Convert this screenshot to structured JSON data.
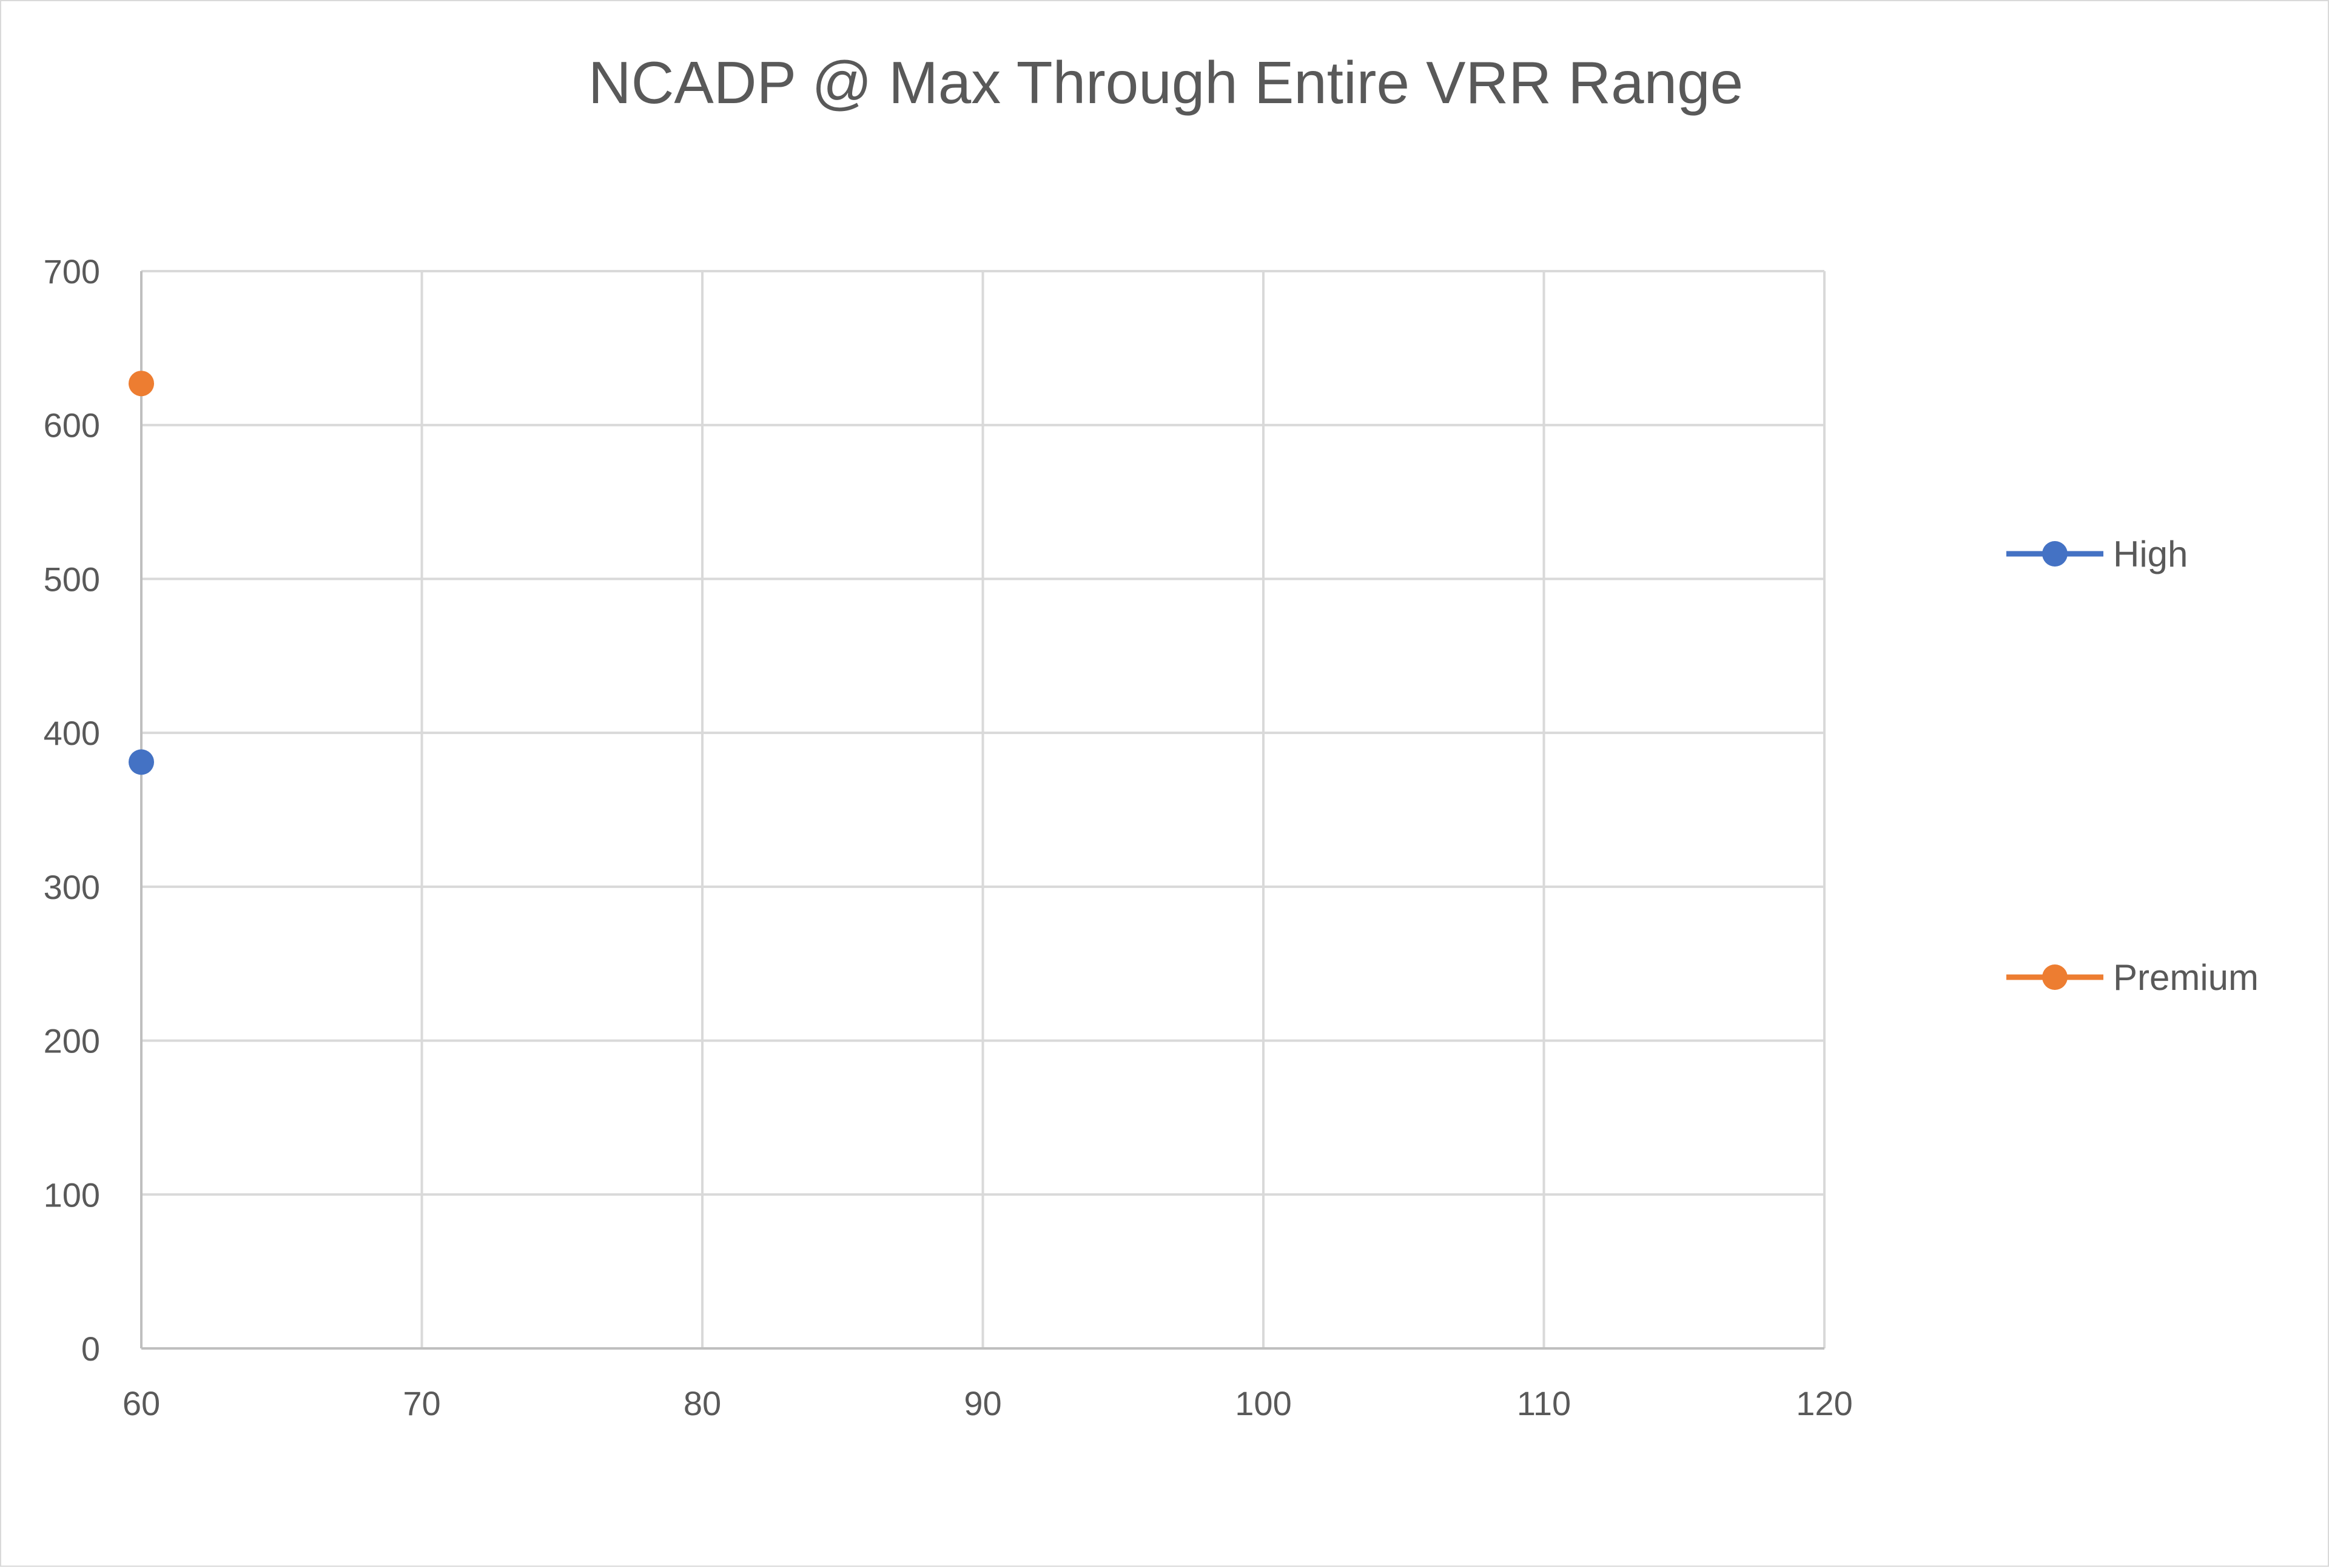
{
  "chart_data": {
    "type": "line",
    "title": "NCADP @ Max Through Entire VRR Range",
    "xlabel": "",
    "ylabel": "",
    "xlim": [
      60,
      120
    ],
    "ylim": [
      0,
      700
    ],
    "x_ticks": [
      60,
      70,
      80,
      90,
      100,
      110,
      120
    ],
    "y_ticks": [
      0,
      100,
      200,
      300,
      400,
      500,
      600,
      700
    ],
    "grid": true,
    "legend_position": "right",
    "series": [
      {
        "name": "High",
        "color": "#4472C4",
        "points": [
          {
            "x": 60,
            "y": 381
          }
        ]
      },
      {
        "name": "Premium",
        "color": "#ED7D31",
        "points": [
          {
            "x": 60,
            "y": 627
          }
        ]
      }
    ]
  },
  "colors": {
    "gridline": "#d9d9d9",
    "axis": "#bfbfbf",
    "text": "#595959"
  }
}
